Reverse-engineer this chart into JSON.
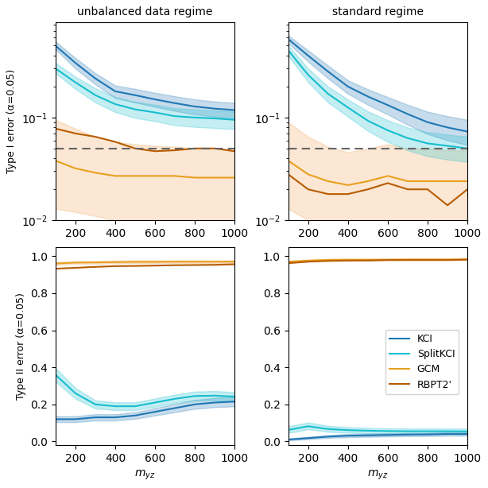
{
  "x": [
    100,
    200,
    300,
    400,
    500,
    600,
    700,
    800,
    900,
    1000
  ],
  "unbal_type1": {
    "KCI": [
      0.5,
      0.34,
      0.24,
      0.18,
      0.165,
      0.15,
      0.138,
      0.128,
      0.122,
      0.118
    ],
    "SplitKCI": [
      0.3,
      0.22,
      0.165,
      0.135,
      0.12,
      0.112,
      0.103,
      0.1,
      0.098,
      0.095
    ],
    "GCM": [
      0.038,
      0.032,
      0.029,
      0.027,
      0.027,
      0.027,
      0.027,
      0.026,
      0.026,
      0.026
    ],
    "RBPT2": [
      0.078,
      0.07,
      0.065,
      0.058,
      0.05,
      0.047,
      0.048,
      0.05,
      0.05,
      0.047
    ],
    "KCI_lo": [
      0.46,
      0.3,
      0.21,
      0.155,
      0.14,
      0.127,
      0.116,
      0.107,
      0.102,
      0.097
    ],
    "KCI_hi": [
      0.55,
      0.38,
      0.27,
      0.205,
      0.19,
      0.174,
      0.161,
      0.15,
      0.143,
      0.139
    ],
    "SplitKCI_lo": [
      0.27,
      0.19,
      0.14,
      0.113,
      0.099,
      0.092,
      0.084,
      0.081,
      0.079,
      0.077
    ],
    "SplitKCI_hi": [
      0.34,
      0.25,
      0.193,
      0.158,
      0.142,
      0.133,
      0.123,
      0.12,
      0.117,
      0.114
    ],
    "GCM_lo": [
      0.013,
      0.012,
      0.011,
      0.01,
      0.01,
      0.01,
      0.01,
      0.01,
      0.01,
      0.01
    ],
    "GCM_hi": [
      0.095,
      0.078,
      0.065,
      0.058,
      0.055,
      0.053,
      0.052,
      0.05,
      0.05,
      0.048
    ],
    "RBPT2_lo": [
      0.013,
      0.012,
      0.011,
      0.01,
      0.01,
      0.01,
      0.01,
      0.01,
      0.01,
      0.01
    ],
    "RBPT2_hi": [
      0.095,
      0.078,
      0.065,
      0.058,
      0.055,
      0.053,
      0.052,
      0.05,
      0.05,
      0.048
    ]
  },
  "std_type1": {
    "KCI": [
      0.58,
      0.4,
      0.28,
      0.2,
      0.16,
      0.132,
      0.108,
      0.09,
      0.08,
      0.073
    ],
    "SplitKCI": [
      0.45,
      0.26,
      0.17,
      0.125,
      0.093,
      0.075,
      0.063,
      0.056,
      0.053,
      0.05
    ],
    "GCM": [
      0.038,
      0.028,
      0.024,
      0.022,
      0.024,
      0.027,
      0.024,
      0.024,
      0.024,
      0.024
    ],
    "RBPT2": [
      0.028,
      0.02,
      0.018,
      0.018,
      0.02,
      0.023,
      0.02,
      0.02,
      0.014,
      0.02
    ],
    "KCI_lo": [
      0.53,
      0.35,
      0.24,
      0.17,
      0.133,
      0.107,
      0.085,
      0.069,
      0.06,
      0.054
    ],
    "KCI_hi": [
      0.63,
      0.45,
      0.32,
      0.23,
      0.188,
      0.158,
      0.133,
      0.114,
      0.103,
      0.095
    ],
    "SplitKCI_lo": [
      0.4,
      0.22,
      0.14,
      0.102,
      0.074,
      0.058,
      0.048,
      0.042,
      0.039,
      0.037
    ],
    "SplitKCI_hi": [
      0.5,
      0.3,
      0.2,
      0.15,
      0.115,
      0.094,
      0.08,
      0.072,
      0.068,
      0.065
    ],
    "GCM_lo": [
      0.013,
      0.01,
      0.01,
      0.01,
      0.01,
      0.01,
      0.01,
      0.01,
      0.01,
      0.01
    ],
    "GCM_hi": [
      0.09,
      0.065,
      0.052,
      0.046,
      0.05,
      0.055,
      0.05,
      0.05,
      0.048,
      0.048
    ],
    "RBPT2_lo": [
      0.013,
      0.01,
      0.01,
      0.01,
      0.01,
      0.01,
      0.01,
      0.01,
      0.01,
      0.01
    ],
    "RBPT2_hi": [
      0.09,
      0.065,
      0.052,
      0.046,
      0.05,
      0.055,
      0.05,
      0.05,
      0.048,
      0.048
    ]
  },
  "unbal_type2": {
    "KCI": [
      0.12,
      0.12,
      0.13,
      0.13,
      0.14,
      0.16,
      0.18,
      0.2,
      0.21,
      0.215
    ],
    "SplitKCI": [
      0.36,
      0.26,
      0.2,
      0.19,
      0.19,
      0.21,
      0.23,
      0.245,
      0.247,
      0.242
    ],
    "GCM": [
      0.96,
      0.965,
      0.966,
      0.968,
      0.969,
      0.969,
      0.97,
      0.97,
      0.97,
      0.97
    ],
    "RBPT2": [
      0.932,
      0.937,
      0.942,
      0.946,
      0.947,
      0.949,
      0.951,
      0.952,
      0.953,
      0.956
    ],
    "KCI_lo": [
      0.104,
      0.104,
      0.113,
      0.113,
      0.122,
      0.14,
      0.158,
      0.176,
      0.185,
      0.189
    ],
    "KCI_hi": [
      0.136,
      0.136,
      0.147,
      0.147,
      0.158,
      0.18,
      0.202,
      0.224,
      0.235,
      0.241
    ],
    "SplitKCI_lo": [
      0.323,
      0.231,
      0.178,
      0.169,
      0.169,
      0.188,
      0.207,
      0.221,
      0.222,
      0.218
    ],
    "SplitKCI_hi": [
      0.397,
      0.289,
      0.222,
      0.211,
      0.211,
      0.232,
      0.253,
      0.269,
      0.272,
      0.266
    ],
    "GCM_lo": [
      0.952,
      0.958,
      0.959,
      0.961,
      0.962,
      0.962,
      0.963,
      0.963,
      0.963,
      0.963
    ],
    "GCM_hi": [
      0.968,
      0.972,
      0.973,
      0.975,
      0.976,
      0.976,
      0.977,
      0.977,
      0.977,
      0.977
    ],
    "RBPT2_lo": [
      0.952,
      0.958,
      0.959,
      0.961,
      0.962,
      0.962,
      0.963,
      0.963,
      0.963,
      0.963
    ],
    "RBPT2_hi": [
      0.968,
      0.972,
      0.973,
      0.975,
      0.976,
      0.976,
      0.977,
      0.977,
      0.977,
      0.977
    ]
  },
  "std_type2": {
    "KCI": [
      0.01,
      0.018,
      0.026,
      0.031,
      0.033,
      0.035,
      0.037,
      0.038,
      0.04,
      0.04
    ],
    "SplitKCI": [
      0.062,
      0.082,
      0.067,
      0.061,
      0.058,
      0.056,
      0.055,
      0.055,
      0.055,
      0.054
    ],
    "GCM": [
      0.97,
      0.976,
      0.98,
      0.981,
      0.981,
      0.981,
      0.982,
      0.982,
      0.982,
      0.983
    ],
    "RBPT2": [
      0.962,
      0.97,
      0.974,
      0.976,
      0.976,
      0.979,
      0.979,
      0.979,
      0.979,
      0.981
    ],
    "KCI_lo": [
      0.006,
      0.012,
      0.019,
      0.023,
      0.025,
      0.027,
      0.028,
      0.029,
      0.031,
      0.031
    ],
    "KCI_hi": [
      0.016,
      0.025,
      0.034,
      0.04,
      0.042,
      0.044,
      0.046,
      0.047,
      0.05,
      0.05
    ],
    "SplitKCI_lo": [
      0.046,
      0.065,
      0.052,
      0.047,
      0.044,
      0.042,
      0.041,
      0.041,
      0.041,
      0.04
    ],
    "SplitKCI_hi": [
      0.082,
      0.102,
      0.084,
      0.077,
      0.073,
      0.071,
      0.07,
      0.07,
      0.07,
      0.069
    ],
    "GCM_lo": [
      0.965,
      0.971,
      0.976,
      0.977,
      0.977,
      0.977,
      0.978,
      0.978,
      0.978,
      0.979
    ],
    "GCM_hi": [
      0.975,
      0.981,
      0.984,
      0.985,
      0.985,
      0.985,
      0.986,
      0.986,
      0.986,
      0.987
    ],
    "RBPT2_lo": [
      0.965,
      0.971,
      0.976,
      0.977,
      0.977,
      0.977,
      0.978,
      0.978,
      0.978,
      0.979
    ],
    "RBPT2_hi": [
      0.975,
      0.981,
      0.984,
      0.985,
      0.985,
      0.985,
      0.986,
      0.986,
      0.986,
      0.987
    ]
  },
  "colors": {
    "KCI": "#1f77b4",
    "SplitKCI": "#17becf",
    "GCM": "#e8a020",
    "RBPT2": "#b85c00"
  },
  "fill_colors": {
    "KCI": "#1f77b4",
    "SplitKCI": "#17becf",
    "GCM": "#f0a050",
    "RBPT2": "#f0a050"
  },
  "alpha_fill": 0.25,
  "dashed_line": 0.05,
  "titles_top": [
    "unbalanced data regime",
    "standard regime"
  ],
  "ylabel_top": "Type I error (α=0.05)",
  "ylabel_bottom": "Type II error (α=0.05)",
  "xlabel": "$m_{yz}$",
  "legend_labels": [
    "KCI",
    "SplitKCI",
    "GCM",
    "RBPT2'"
  ],
  "xticks": [
    200,
    400,
    600,
    800,
    1000
  ]
}
